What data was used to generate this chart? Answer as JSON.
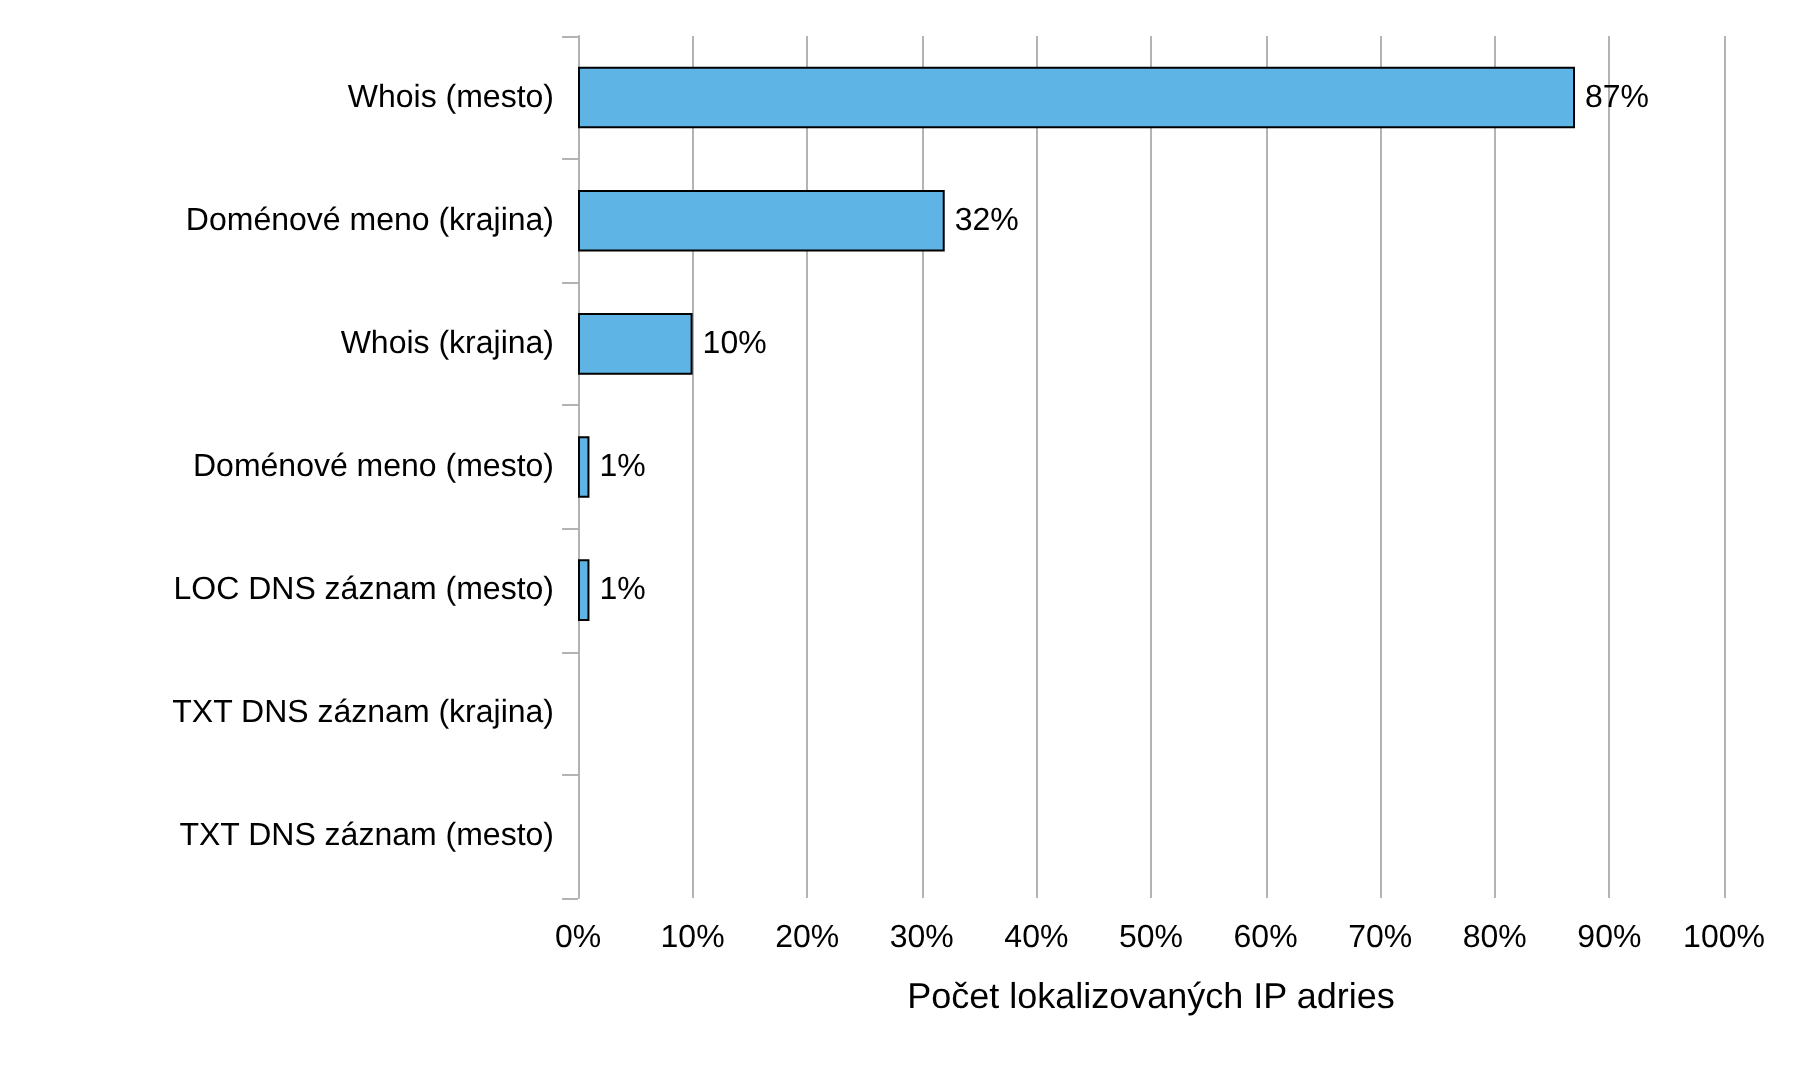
{
  "chart_data": {
    "type": "bar",
    "orientation": "horizontal",
    "xlabel": "Počet lokalizovaných IP adries",
    "categories": [
      "Whois (mesto)",
      "Doménové meno (krajina)",
      "Whois (krajina)",
      "Doménové meno (mesto)",
      "LOC DNS záznam (mesto)",
      "TXT DNS záznam (krajina)",
      "TXT DNS záznam (mesto)"
    ],
    "values": [
      87,
      32,
      10,
      1,
      1,
      0,
      0
    ],
    "value_labels": [
      "87%",
      "32%",
      "10%",
      "1%",
      "1%",
      null,
      null
    ],
    "color": "#5eb4e4",
    "xlim": [
      0,
      100
    ],
    "xticks": [
      {
        "value": 0,
        "label": "0%"
      },
      {
        "value": 10,
        "label": "10%"
      },
      {
        "value": 20,
        "label": "20%"
      },
      {
        "value": 30,
        "label": "30%"
      },
      {
        "value": 40,
        "label": "40%"
      },
      {
        "value": 50,
        "label": "50%"
      },
      {
        "value": 60,
        "label": "60%"
      },
      {
        "value": 70,
        "label": "70%"
      },
      {
        "value": 80,
        "label": "80%"
      },
      {
        "value": 90,
        "label": "90%"
      },
      {
        "value": 100,
        "label": "100%"
      }
    ],
    "grid": "x"
  }
}
